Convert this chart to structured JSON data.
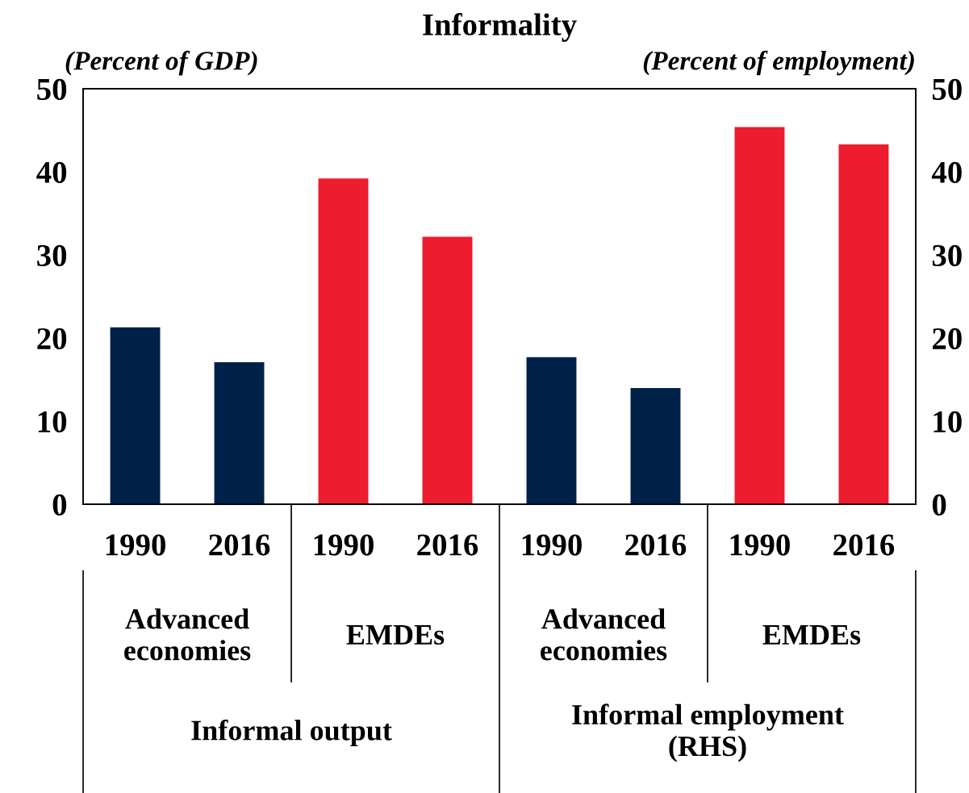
{
  "chart_data": {
    "type": "bar",
    "title": "Informality",
    "ylabel": "(Percent of GDP)",
    "y2label": "(Percent of employment)",
    "categories": [
      "1990",
      "2016",
      "1990",
      "2016",
      "1990",
      "2016",
      "1990",
      "2016"
    ],
    "series": [
      {
        "colors": [
          "#002147",
          "#002147",
          "#ed1c2e",
          "#ed1c2e",
          "#002147",
          "#002147",
          "#ed1c2e",
          "#ed1c2e"
        ],
        "values": [
          21.3,
          17.1,
          39.2,
          32.2,
          null,
          null,
          null,
          null
        ]
      },
      {
        "axis": "y2",
        "colors": [
          "#002147",
          "#002147",
          "#ed1c2e",
          "#ed1c2e",
          "#002147",
          "#002147",
          "#ed1c2e",
          "#ed1c2e"
        ],
        "values": [
          null,
          null,
          null,
          null,
          17.7,
          14.0,
          45.4,
          43.3
        ]
      }
    ],
    "ylim": [
      0,
      50
    ],
    "yticks": [
      0,
      10,
      20,
      30,
      40,
      50
    ],
    "y2lim": [
      0,
      50
    ],
    "y2ticks": [
      0,
      10,
      20,
      30,
      40,
      50
    ],
    "annotations": [
      "Advanced\neconomies",
      "EMDEs",
      "Advanced\neconomies",
      "EMDEs",
      "Informal output",
      "Informal employment\n(RHS)"
    ]
  }
}
